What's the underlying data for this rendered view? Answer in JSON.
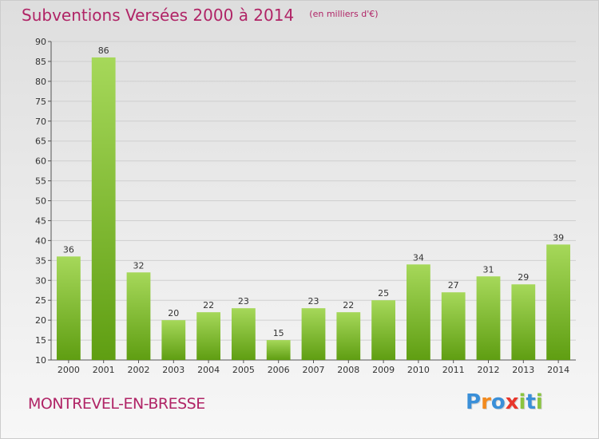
{
  "colors": {
    "title": "#b02466",
    "bar_light": "#a6d85a",
    "bar_dark": "#5f9e12",
    "grid": "#cfcfcf",
    "axis": "#555555",
    "logo_letters": [
      "#3a8fd8",
      "#f28a1e",
      "#3a8fd8",
      "#e8362b",
      "#8ac43f",
      "#3a8fd8",
      "#8ac43f"
    ]
  },
  "header": {
    "title": "Subventions Versées 2000 à 2014",
    "subtitle": "(en milliers d'€)"
  },
  "footer": {
    "commune": "MONTREVEL-EN-BRESSE",
    "logo_text": "Proxiti"
  },
  "chart_data": {
    "type": "bar",
    "title": "Subventions Versées 2000 à 2014",
    "subtitle": "(en milliers d'€)",
    "xlabel": "",
    "ylabel": "",
    "categories": [
      "2000",
      "2001",
      "2002",
      "2003",
      "2004",
      "2005",
      "2006",
      "2007",
      "2008",
      "2009",
      "2010",
      "2011",
      "2012",
      "2013",
      "2014"
    ],
    "values": [
      36,
      86,
      32,
      20,
      22,
      23,
      15,
      23,
      22,
      25,
      34,
      27,
      31,
      29,
      39
    ],
    "ylim": [
      10,
      90
    ],
    "yticks": [
      10,
      15,
      20,
      25,
      30,
      35,
      40,
      45,
      50,
      55,
      60,
      65,
      70,
      75,
      80,
      85,
      90
    ],
    "grid": true,
    "legend": "none"
  }
}
